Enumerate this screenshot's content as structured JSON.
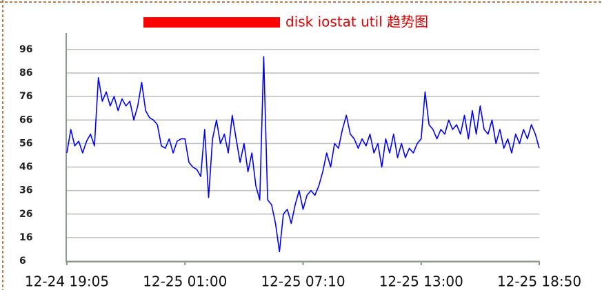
{
  "chart_data": {
    "type": "line",
    "title": "disk iostat util 趋势图",
    "x": [
      0,
      1,
      2,
      3,
      4,
      5,
      6,
      7,
      8,
      9,
      10,
      11,
      12,
      13,
      14,
      15,
      16,
      17,
      18,
      19,
      20,
      21,
      22,
      23,
      24,
      25,
      26,
      27,
      28,
      29,
      30,
      31,
      32,
      33,
      34,
      35,
      36,
      37,
      38,
      39,
      40,
      41,
      42,
      43,
      44,
      45,
      46,
      47,
      48,
      49,
      50,
      51,
      52,
      53,
      54,
      55,
      56,
      57,
      58,
      59,
      60,
      61,
      62,
      63,
      64,
      65,
      66,
      67,
      68,
      69,
      70,
      71,
      72,
      73,
      74,
      75,
      76,
      77,
      78,
      79,
      80,
      81,
      82,
      83,
      84,
      85,
      86,
      87,
      88,
      89,
      90,
      91,
      92,
      93,
      94,
      95,
      96,
      97,
      98,
      99,
      100,
      101,
      102,
      103,
      104,
      105,
      106,
      107,
      108,
      109,
      110,
      111,
      112,
      113,
      114,
      115,
      116,
      117,
      118,
      119,
      120
    ],
    "series": [
      {
        "color": "#0000ff",
        "values": [
          52,
          62,
          55,
          57,
          52,
          57,
          60,
          55,
          84,
          74,
          78,
          72,
          76,
          70,
          75,
          72,
          74,
          66,
          72,
          82,
          70,
          67,
          66,
          64,
          55,
          54,
          58,
          52,
          57,
          58,
          58,
          48,
          46,
          45,
          42,
          62,
          33,
          58,
          66,
          56,
          60,
          52,
          68,
          58,
          48,
          56,
          44,
          52,
          38,
          32,
          93,
          32,
          30,
          22,
          10,
          26,
          28,
          22,
          30,
          36,
          28,
          34,
          36,
          34,
          38,
          44,
          52,
          46,
          56,
          54,
          62,
          68,
          60,
          58,
          54,
          58,
          55,
          60,
          52,
          56,
          46,
          58,
          52,
          60,
          50,
          56,
          50,
          54,
          52,
          56,
          58,
          78,
          64,
          62,
          58,
          62,
          60,
          66,
          62,
          64,
          60,
          68,
          58,
          70,
          60,
          72,
          62,
          60,
          66,
          56,
          62,
          54,
          58,
          52,
          60,
          56,
          62,
          58,
          64,
          60,
          54
        ]
      }
    ],
    "xlim": [
      0,
      120
    ],
    "xticks": [
      {
        "value": 0,
        "label": "12-24 19:05"
      },
      {
        "value": 30,
        "label": "12-25 01:00"
      },
      {
        "value": 60,
        "label": "12-25 07:10"
      },
      {
        "value": 90,
        "label": "12-25 13:00"
      },
      {
        "value": 120,
        "label": "12-25 18:50"
      }
    ],
    "ylim": [
      6,
      103
    ],
    "yticks": [
      6,
      16,
      26,
      36,
      46,
      56,
      66,
      76,
      86,
      96
    ],
    "grid": true
  }
}
